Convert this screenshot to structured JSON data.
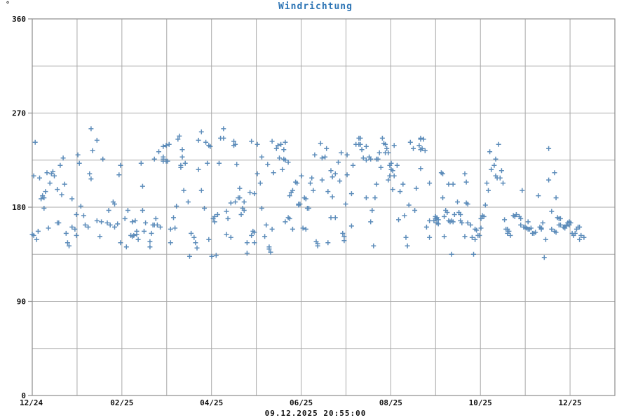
{
  "chart": {
    "title": "Windrichtung",
    "unit_label": "°",
    "footer_timestamp": "09.12.2025 20:55:00",
    "colors": {
      "title": "#2e75b5",
      "marker": "#4e82b4",
      "grid": "#a9a9a9",
      "frame": "#8c8c8c",
      "text": "#111111"
    }
  },
  "chart_data": {
    "type": "scatter",
    "title": "Windrichtung",
    "ylabel": "°",
    "ylim": [
      0,
      360
    ],
    "y_ticks": [
      0,
      90,
      180,
      270,
      360
    ],
    "y_grid_step": 45,
    "grid": true,
    "legend": null,
    "marker": "plus",
    "annotation": "09.12.2025 20:55:00",
    "x_axis": {
      "unit": "days since 01.12.2024",
      "range_days": [
        0,
        396
      ],
      "months_total": 13,
      "labels": [
        "12/24",
        "02/25",
        "04/25",
        "06/25",
        "08/25",
        "10/25",
        "12/25"
      ],
      "label_month_indices": [
        0,
        2,
        4,
        6,
        8,
        10,
        12
      ]
    },
    "points": [
      [
        2,
        242
      ],
      [
        40,
        255
      ],
      [
        44,
        244
      ],
      [
        41,
        234
      ],
      [
        31,
        230
      ],
      [
        21,
        227
      ],
      [
        48,
        226
      ],
      [
        32,
        222
      ],
      [
        19,
        220
      ],
      [
        60,
        220
      ],
      [
        10,
        213
      ],
      [
        14,
        214
      ],
      [
        13,
        212
      ],
      [
        15,
        210
      ],
      [
        1,
        210
      ],
      [
        5,
        208
      ],
      [
        39,
        212
      ],
      [
        59,
        211
      ],
      [
        40,
        207
      ],
      [
        12,
        203
      ],
      [
        22,
        202
      ],
      [
        17,
        197
      ],
      [
        20,
        192
      ],
      [
        9,
        195
      ],
      [
        7,
        191
      ],
      [
        8,
        189
      ],
      [
        6,
        188
      ],
      [
        27,
        188
      ],
      [
        8,
        179
      ],
      [
        33,
        181
      ],
      [
        55,
        185
      ],
      [
        56,
        183
      ],
      [
        52,
        177
      ],
      [
        30,
        173
      ],
      [
        35,
        172
      ],
      [
        44,
        167
      ],
      [
        47,
        166
      ],
      [
        17,
        165
      ],
      [
        18,
        165
      ],
      [
        51,
        165
      ],
      [
        53,
        163
      ],
      [
        58,
        164
      ],
      [
        56,
        161
      ],
      [
        36,
        163
      ],
      [
        38,
        161
      ],
      [
        63,
        169
      ],
      [
        11,
        160
      ],
      [
        27,
        161
      ],
      [
        29,
        159
      ],
      [
        4,
        157
      ],
      [
        0,
        154
      ],
      [
        1,
        153
      ],
      [
        3,
        149
      ],
      [
        23,
        155
      ],
      [
        24,
        146
      ],
      [
        25,
        143
      ],
      [
        30,
        153
      ],
      [
        46,
        152
      ],
      [
        60,
        146
      ],
      [
        64,
        142
      ],
      [
        100,
        248
      ],
      [
        99,
        245
      ],
      [
        115,
        252
      ],
      [
        130,
        255
      ],
      [
        128,
        246
      ],
      [
        130,
        246
      ],
      [
        113,
        244
      ],
      [
        91,
        239
      ],
      [
        93,
        240
      ],
      [
        89,
        238
      ],
      [
        118,
        242
      ],
      [
        120,
        239
      ],
      [
        121,
        238
      ],
      [
        102,
        235
      ],
      [
        86,
        233
      ],
      [
        83,
        226
      ],
      [
        102,
        228
      ],
      [
        89,
        228
      ],
      [
        89,
        226
      ],
      [
        89,
        224
      ],
      [
        91,
        224
      ],
      [
        92,
        224
      ],
      [
        74,
        222
      ],
      [
        101,
        220
      ],
      [
        104,
        222
      ],
      [
        101,
        218
      ],
      [
        113,
        216
      ],
      [
        119,
        222
      ],
      [
        127,
        222
      ],
      [
        75,
        200
      ],
      [
        103,
        196
      ],
      [
        115,
        196
      ],
      [
        106,
        185
      ],
      [
        98,
        181
      ],
      [
        117,
        179
      ],
      [
        75,
        177
      ],
      [
        65,
        177
      ],
      [
        68,
        166
      ],
      [
        70,
        167
      ],
      [
        77,
        165
      ],
      [
        84,
        169
      ],
      [
        82,
        163
      ],
      [
        83,
        163
      ],
      [
        85,
        163
      ],
      [
        87,
        161
      ],
      [
        71,
        157
      ],
      [
        69,
        153
      ],
      [
        67,
        153
      ],
      [
        71,
        154
      ],
      [
        68,
        152
      ],
      [
        76,
        157
      ],
      [
        81,
        155
      ],
      [
        72,
        149
      ],
      [
        80,
        147
      ],
      [
        80,
        142
      ],
      [
        96,
        170
      ],
      [
        94,
        159
      ],
      [
        97,
        160
      ],
      [
        94,
        146
      ],
      [
        108,
        155
      ],
      [
        110,
        151
      ],
      [
        111,
        146
      ],
      [
        112,
        141
      ],
      [
        120,
        149
      ],
      [
        107,
        133
      ],
      [
        122,
        133
      ],
      [
        125,
        134
      ],
      [
        124,
        171
      ],
      [
        126,
        173
      ],
      [
        123,
        169
      ],
      [
        124,
        166
      ],
      [
        137,
        243
      ],
      [
        138,
        240
      ],
      [
        137,
        239
      ],
      [
        149,
        243
      ],
      [
        153,
        240
      ],
      [
        163,
        243
      ],
      [
        167,
        239
      ],
      [
        169,
        240
      ],
      [
        172,
        242
      ],
      [
        166,
        236
      ],
      [
        171,
        235
      ],
      [
        156,
        228
      ],
      [
        168,
        227
      ],
      [
        171,
        226
      ],
      [
        172,
        225
      ],
      [
        174,
        223
      ],
      [
        196,
        241
      ],
      [
        192,
        230
      ],
      [
        139,
        221
      ],
      [
        160,
        221
      ],
      [
        170,
        216
      ],
      [
        164,
        213
      ],
      [
        153,
        212
      ],
      [
        183,
        210
      ],
      [
        190,
        208
      ],
      [
        189,
        203
      ],
      [
        179,
        204
      ],
      [
        180,
        203
      ],
      [
        155,
        203
      ],
      [
        141,
        198
      ],
      [
        148,
        194
      ],
      [
        151,
        193
      ],
      [
        177,
        196
      ],
      [
        176,
        194
      ],
      [
        175,
        191
      ],
      [
        191,
        196
      ],
      [
        185,
        189
      ],
      [
        186,
        188
      ],
      [
        140,
        189
      ],
      [
        141,
        189
      ],
      [
        138,
        185
      ],
      [
        135,
        184
      ],
      [
        144,
        185
      ],
      [
        181,
        183
      ],
      [
        182,
        183
      ],
      [
        181,
        182
      ],
      [
        187,
        179
      ],
      [
        188,
        179
      ],
      [
        156,
        179
      ],
      [
        143,
        179
      ],
      [
        144,
        177
      ],
      [
        142,
        173
      ],
      [
        132,
        176
      ],
      [
        133,
        169
      ],
      [
        132,
        154
      ],
      [
        135,
        151
      ],
      [
        174,
        170
      ],
      [
        175,
        169
      ],
      [
        172,
        166
      ],
      [
        159,
        163
      ],
      [
        163,
        159
      ],
      [
        177,
        159
      ],
      [
        184,
        160
      ],
      [
        186,
        159
      ],
      [
        150,
        157
      ],
      [
        151,
        156
      ],
      [
        149,
        153
      ],
      [
        158,
        152
      ],
      [
        151,
        146
      ],
      [
        146,
        146
      ],
      [
        161,
        142
      ],
      [
        161,
        140
      ],
      [
        162,
        137
      ],
      [
        146,
        136
      ],
      [
        193,
        147
      ],
      [
        194,
        145
      ],
      [
        194,
        143
      ],
      [
        222,
        246
      ],
      [
        223,
        246
      ],
      [
        220,
        240
      ],
      [
        222,
        240
      ],
      [
        223,
        240
      ],
      [
        238,
        246
      ],
      [
        239,
        241
      ],
      [
        240,
        240
      ],
      [
        227,
        238
      ],
      [
        224,
        235
      ],
      [
        241,
        236
      ],
      [
        242,
        232
      ],
      [
        246,
        239
      ],
      [
        257,
        242
      ],
      [
        263,
        239
      ],
      [
        264,
        245
      ],
      [
        259,
        236
      ],
      [
        200,
        236
      ],
      [
        199,
        228
      ],
      [
        197,
        227
      ],
      [
        210,
        232
      ],
      [
        214,
        230
      ],
      [
        236,
        232
      ],
      [
        240,
        232
      ],
      [
        234,
        226
      ],
      [
        235,
        226
      ],
      [
        225,
        227
      ],
      [
        229,
        228
      ],
      [
        227,
        225
      ],
      [
        230,
        226
      ],
      [
        208,
        223
      ],
      [
        218,
        220
      ],
      [
        203,
        215
      ],
      [
        206,
        212
      ],
      [
        204,
        209
      ],
      [
        214,
        211
      ],
      [
        209,
        205
      ],
      [
        197,
        206
      ],
      [
        237,
        218
      ],
      [
        243,
        220
      ],
      [
        244,
        222
      ],
      [
        244,
        216
      ],
      [
        245,
        215
      ],
      [
        248,
        220
      ],
      [
        242,
        206
      ],
      [
        243,
        210
      ],
      [
        246,
        210
      ],
      [
        252,
        202
      ],
      [
        245,
        197
      ],
      [
        250,
        195
      ],
      [
        261,
        198
      ],
      [
        201,
        195
      ],
      [
        204,
        190
      ],
      [
        217,
        193
      ],
      [
        234,
        202
      ],
      [
        227,
        189
      ],
      [
        233,
        189
      ],
      [
        213,
        183
      ],
      [
        256,
        182
      ],
      [
        260,
        177
      ],
      [
        231,
        177
      ],
      [
        230,
        166
      ],
      [
        253,
        172
      ],
      [
        249,
        168
      ],
      [
        203,
        170
      ],
      [
        206,
        170
      ],
      [
        217,
        162
      ],
      [
        211,
        155
      ],
      [
        212,
        152
      ],
      [
        212,
        148
      ],
      [
        254,
        151
      ],
      [
        255,
        143
      ],
      [
        201,
        146
      ],
      [
        232,
        143
      ],
      [
        264,
        246
      ],
      [
        266,
        245
      ],
      [
        265,
        236
      ],
      [
        267,
        234
      ],
      [
        264,
        235
      ],
      [
        317,
        240
      ],
      [
        311,
        233
      ],
      [
        315,
        226
      ],
      [
        314,
        220
      ],
      [
        312,
        216
      ],
      [
        319,
        215
      ],
      [
        315,
        210
      ],
      [
        316,
        208
      ],
      [
        318,
        208
      ],
      [
        320,
        203
      ],
      [
        309,
        203
      ],
      [
        310,
        196
      ],
      [
        264,
        217
      ],
      [
        278,
        213
      ],
      [
        279,
        212
      ],
      [
        294,
        212
      ],
      [
        295,
        204
      ],
      [
        283,
        202
      ],
      [
        286,
        202
      ],
      [
        270,
        203
      ],
      [
        279,
        189
      ],
      [
        289,
        185
      ],
      [
        295,
        184
      ],
      [
        296,
        183
      ],
      [
        308,
        182
      ],
      [
        281,
        177
      ],
      [
        282,
        175
      ],
      [
        287,
        173
      ],
      [
        290,
        175
      ],
      [
        291,
        173
      ],
      [
        274,
        171
      ],
      [
        275,
        170
      ],
      [
        274,
        169
      ],
      [
        276,
        168
      ],
      [
        273,
        167
      ],
      [
        275,
        165
      ],
      [
        276,
        164
      ],
      [
        268,
        161
      ],
      [
        270,
        167
      ],
      [
        280,
        171
      ],
      [
        283,
        167
      ],
      [
        284,
        166
      ],
      [
        285,
        167
      ],
      [
        286,
        166
      ],
      [
        291,
        167
      ],
      [
        292,
        165
      ],
      [
        296,
        165
      ],
      [
        298,
        163
      ],
      [
        301,
        159
      ],
      [
        302,
        158
      ],
      [
        303,
        153
      ],
      [
        304,
        153
      ],
      [
        305,
        160
      ],
      [
        306,
        172
      ],
      [
        307,
        171
      ],
      [
        305,
        169
      ],
      [
        270,
        151
      ],
      [
        280,
        152
      ],
      [
        294,
        152
      ],
      [
        299,
        151
      ],
      [
        301,
        149
      ],
      [
        285,
        135
      ],
      [
        300,
        135
      ],
      [
        321,
        168
      ],
      [
        327,
        172
      ],
      [
        328,
        171
      ],
      [
        322,
        159
      ],
      [
        323,
        159
      ],
      [
        324,
        157
      ],
      [
        323,
        155
      ],
      [
        325,
        153
      ],
      [
        329,
        173
      ],
      [
        351,
        236
      ],
      [
        355,
        213
      ],
      [
        351,
        206
      ],
      [
        333,
        196
      ],
      [
        344,
        191
      ],
      [
        356,
        189
      ],
      [
        353,
        176
      ],
      [
        331,
        171
      ],
      [
        332,
        169
      ],
      [
        337,
        166
      ],
      [
        339,
        160
      ],
      [
        332,
        163
      ],
      [
        334,
        161
      ],
      [
        335,
        161
      ],
      [
        336,
        160
      ],
      [
        337,
        159
      ],
      [
        338,
        159
      ],
      [
        340,
        155
      ],
      [
        341,
        155
      ],
      [
        342,
        156
      ],
      [
        345,
        161
      ],
      [
        346,
        160
      ],
      [
        346,
        159
      ],
      [
        347,
        165
      ],
      [
        353,
        159
      ],
      [
        355,
        157
      ],
      [
        356,
        156
      ],
      [
        357,
        170
      ],
      [
        358,
        169
      ],
      [
        359,
        169
      ],
      [
        358,
        163
      ],
      [
        359,
        163
      ],
      [
        361,
        161
      ],
      [
        362,
        160
      ],
      [
        363,
        162
      ],
      [
        363,
        163
      ],
      [
        364,
        165
      ],
      [
        365,
        163
      ],
      [
        365,
        166
      ],
      [
        366,
        165
      ],
      [
        367,
        155
      ],
      [
        368,
        153
      ],
      [
        369,
        155
      ],
      [
        370,
        159
      ],
      [
        371,
        161
      ],
      [
        372,
        161
      ],
      [
        373,
        153
      ],
      [
        375,
        151
      ],
      [
        372,
        149
      ],
      [
        348,
        132
      ],
      [
        349,
        149
      ]
    ]
  }
}
